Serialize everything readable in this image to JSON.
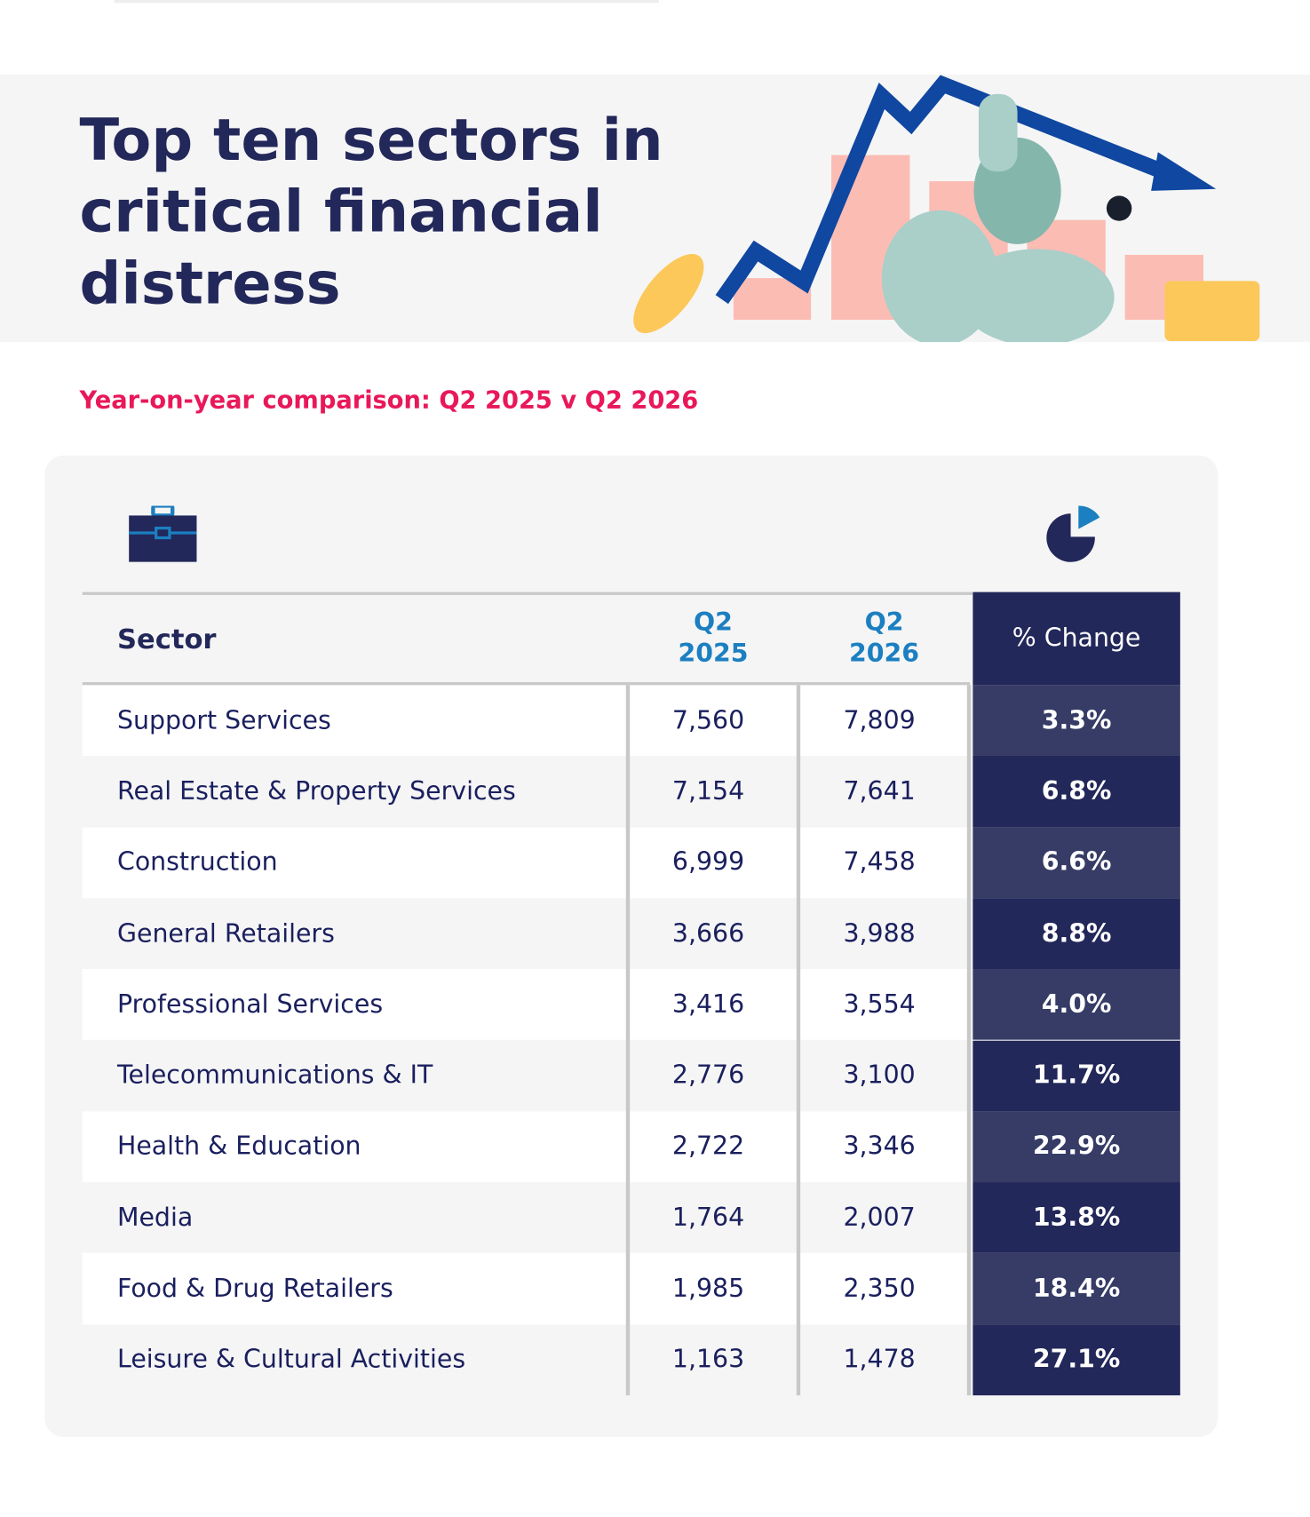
{
  "header": {
    "title": "Top ten sectors in critical financial distress",
    "subtitle": "Year-on-year comparison: Q2 2025 v Q2 2026"
  },
  "table": {
    "columns": [
      "Sector",
      "Q2 2025",
      "Q2 2026",
      "% Change"
    ],
    "rows": [
      [
        "Support Services",
        "7,560",
        "7,809",
        "3.3%"
      ],
      [
        "Real Estate & Property Services",
        "7,154",
        "7,641",
        "6.8%"
      ],
      [
        "Construction",
        "6,999",
        "7,458",
        "6.6%"
      ],
      [
        "General Retailers",
        "3,666",
        "3,988",
        "8.8%"
      ],
      [
        "Professional Services",
        "3,416",
        "3,554",
        "4.0%"
      ],
      [
        "Telecommunications & IT",
        "2,776",
        "3,100",
        "11.7%"
      ],
      [
        "Health & Education",
        "2,722",
        "3,346",
        "22.9%"
      ],
      [
        "Media",
        "1,764",
        "2,007",
        "13.8%"
      ],
      [
        "Food & Drug Retailers",
        "1,985",
        "2,350",
        "18.4%"
      ],
      [
        "Leisure & Cultural Activities",
        "1,163",
        "1,478",
        "27.1%"
      ]
    ]
  }
}
